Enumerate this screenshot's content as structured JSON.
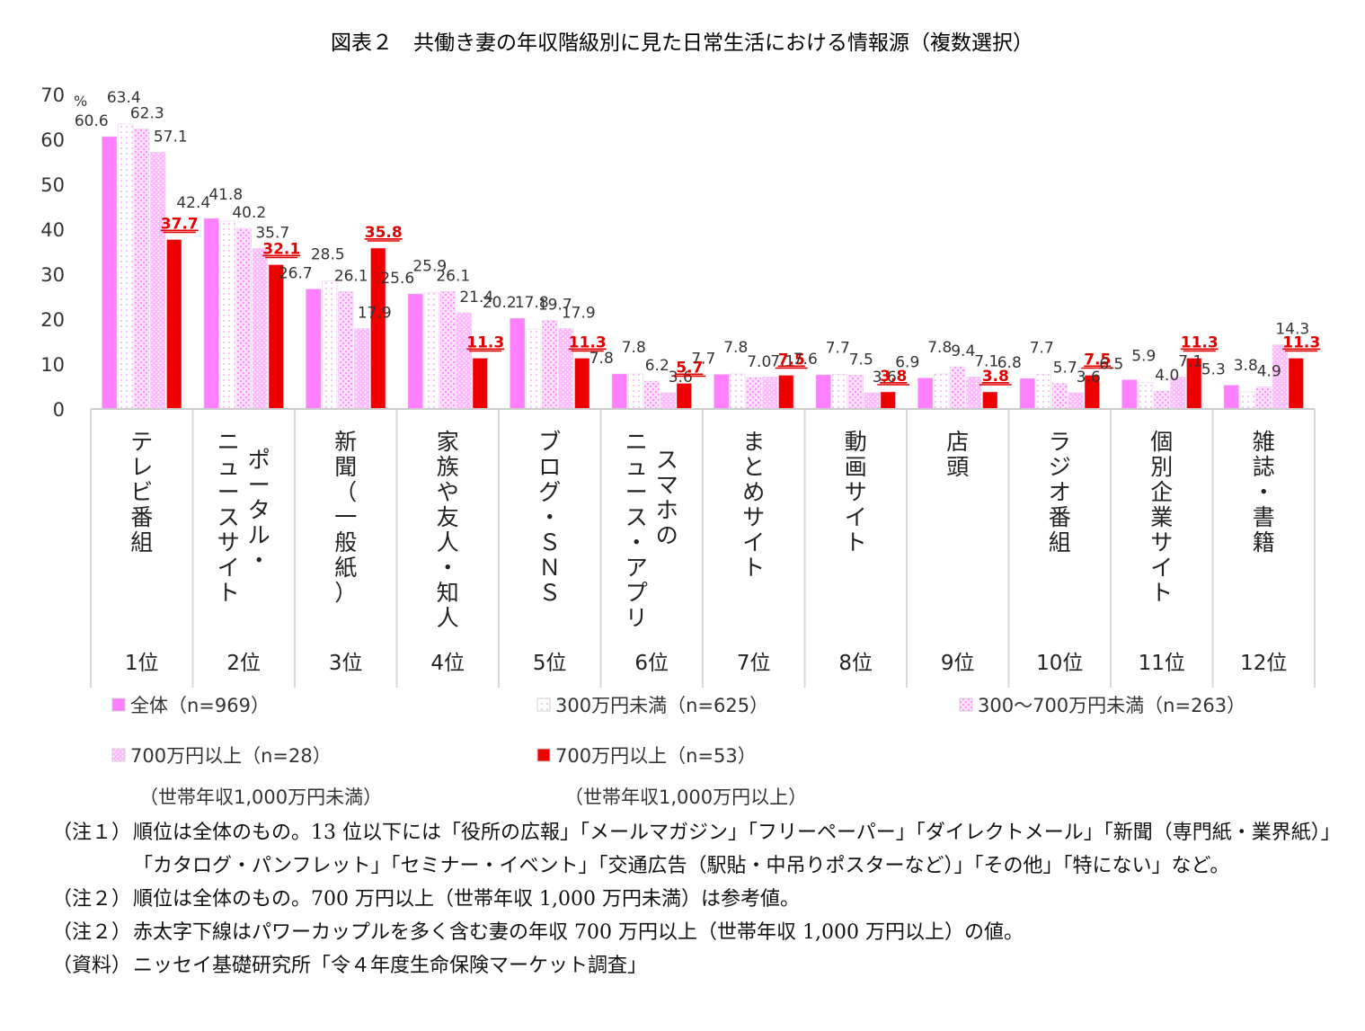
{
  "title": "図表２　共働き妻の年収階級別に見た日常生活における情報源（複数選択）",
  "chart_data": {
    "type": "bar",
    "y_unit": "%",
    "ylim": [
      0,
      70
    ],
    "yticks": [
      "0",
      "10",
      "20",
      "30",
      "40",
      "50",
      "60",
      "70"
    ],
    "categories": [
      [
        "テレビ番組"
      ],
      [
        "ポータル・",
        "ニュースサイト"
      ],
      [
        "新聞（一般紙）"
      ],
      [
        "家族や友人・知人"
      ],
      [
        "ブログ・ＳＮＳ"
      ],
      [
        "スマホの",
        "ニュース・アプリ"
      ],
      [
        "まとめサイト"
      ],
      [
        "動画サイト"
      ],
      [
        "店頭"
      ],
      [
        "ラジオ番組"
      ],
      [
        "個別企業サイト"
      ],
      [
        "雑誌・書籍"
      ]
    ],
    "ranks": [
      "1位",
      "2位",
      "3位",
      "4位",
      "5位",
      "6位",
      "7位",
      "8位",
      "9位",
      "10位",
      "11位",
      "12位"
    ],
    "series": [
      {
        "name": "全体（n=969）",
        "color": "#ff80ff",
        "pattern": "solid-pink",
        "values": [
          60.6,
          42.4,
          26.7,
          25.6,
          20.2,
          7.8,
          7.7,
          7.6,
          6.9,
          6.8,
          6.5,
          5.3
        ]
      },
      {
        "name": "300万円未満（n=625）",
        "color": "#ffe8ff",
        "pattern": "dots-white",
        "values": [
          63.4,
          41.8,
          28.5,
          25.9,
          17.8,
          7.8,
          7.8,
          7.7,
          7.8,
          7.7,
          5.9,
          3.8
        ]
      },
      {
        "name": "300～700万円未満（n=263）",
        "color": "#ffc8ff",
        "pattern": "check-pink",
        "values": [
          62.3,
          40.2,
          26.1,
          26.1,
          19.7,
          6.2,
          7.0,
          7.5,
          9.4,
          5.7,
          4.0,
          4.9
        ]
      },
      {
        "name": "700万円以上（n=28）",
        "subname": "（世帯年収1,000万円未満）",
        "color": "#ffb0ff",
        "pattern": "dense-pink",
        "values": [
          57.1,
          35.7,
          17.9,
          21.4,
          17.9,
          3.6,
          7.1,
          3.6,
          7.1,
          3.6,
          7.1,
          14.3
        ]
      },
      {
        "name": "700万円以上（n=53）",
        "subname": "（世帯年収1,000万円以上）",
        "color": "#ee0000",
        "pattern": "solid-red",
        "values": [
          37.7,
          32.1,
          35.8,
          11.3,
          11.3,
          5.7,
          7.5,
          3.8,
          3.8,
          7.5,
          11.3,
          11.3
        ]
      }
    ]
  },
  "notes": [
    {
      "label": "（注１）",
      "text": "順位は全体のもの。13 位以下には「役所の広報」「メールマガジン」「フリーペーパー」「ダイレクトメール」「新聞（専門紙・業界紙）」「カタログ・パンフレット」「セミナー・イベント」「交通広告（駅貼・中吊りポスターなど）」「その他」「特にない」など。"
    },
    {
      "label": "（注２）",
      "text": "順位は全体のもの。700 万円以上（世帯年収 1,000 万円未満）は参考値。"
    },
    {
      "label": "（注２）",
      "text": "赤太字下線はパワーカップルを多く含む妻の年収 700 万円以上（世帯年収 1,000 万円以上）の値。"
    },
    {
      "label": "（資料）",
      "text": "ニッセイ基礎研究所「令４年度生命保険マーケット調査」"
    }
  ]
}
